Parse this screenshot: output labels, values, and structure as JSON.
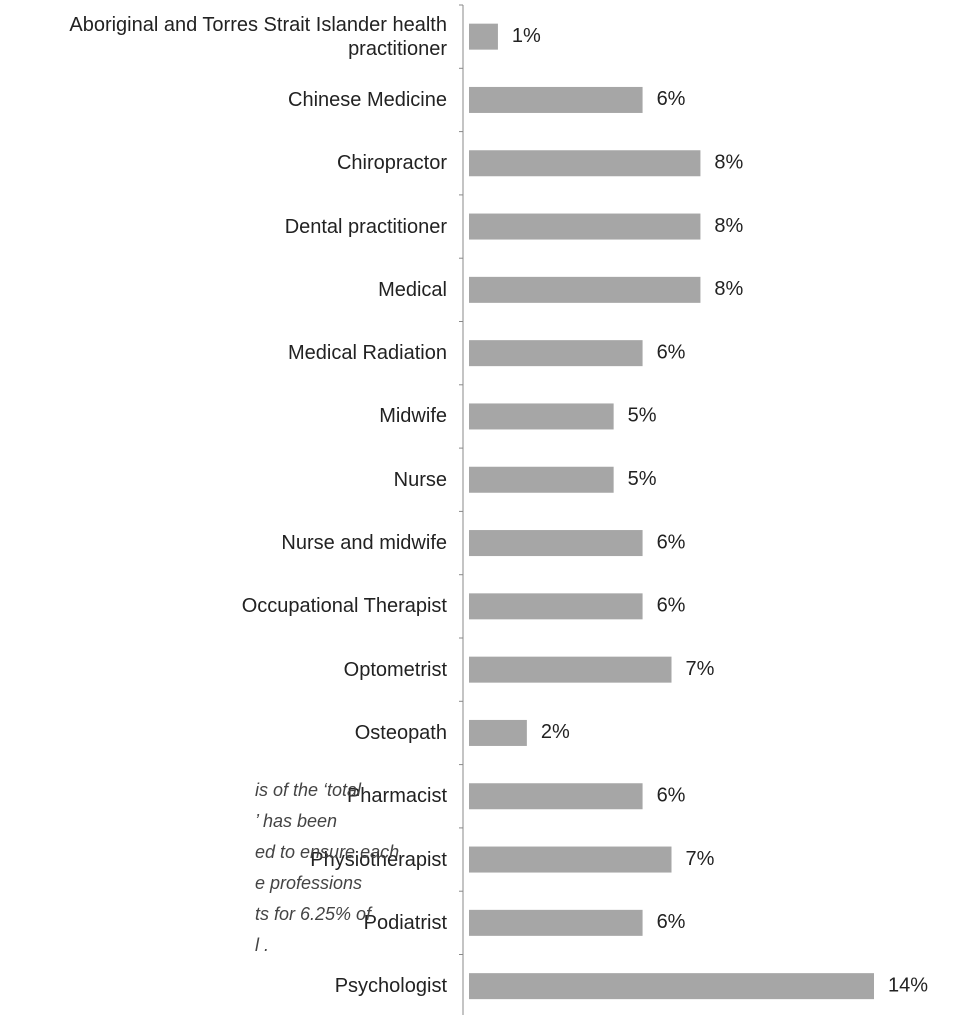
{
  "chart_data": {
    "type": "barh",
    "categories": [
      "Aboriginal and Torres Strait Islander health practitioner",
      "Chinese Medicine",
      "Chiropractor",
      "Dental practitioner",
      "Medical",
      "Medical Radiation",
      "Midwife",
      "Nurse",
      "Nurse and midwife",
      "Occupational Therapist",
      "Optometrist",
      "Osteopath",
      "Pharmacist",
      "Physiotherapist",
      "Podiatrist",
      "Psychologist"
    ],
    "values": [
      1,
      6,
      8,
      8,
      8,
      6,
      5,
      5,
      6,
      6,
      7,
      2,
      6,
      7,
      6,
      14
    ],
    "value_labels": [
      "1%",
      "6%",
      "8%",
      "8%",
      "8%",
      "6%",
      "5%",
      "5%",
      "6%",
      "6%",
      "7%",
      "2%",
      "6%",
      "7%",
      "6%",
      "14%"
    ],
    "color": "#a6a6a6",
    "annotation": [
      "is of the ‘total",
      "’ has been",
      "ed to ensure each",
      "e professions",
      "ts for 6.25% of",
      "l ."
    ]
  }
}
